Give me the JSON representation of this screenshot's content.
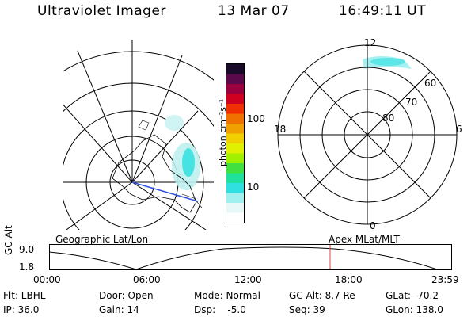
{
  "header": {
    "instrument": "Ultraviolet Imager",
    "date": "13 Mar 07",
    "time": "16:49:11 UT"
  },
  "colorbar": {
    "unit_label": "photon cm⁻²s⁻¹",
    "ticks": [
      "100",
      "10"
    ],
    "colors": [
      "#1a0a2a",
      "#5a0a4a",
      "#9a0040",
      "#d00020",
      "#f03000",
      "#f07000",
      "#f0a000",
      "#f0d000",
      "#e0f000",
      "#a0f000",
      "#40e040",
      "#20e0a0",
      "#30e0e0",
      "#a0f0f0",
      "#e8f8f8",
      "#ffffff"
    ]
  },
  "geo_map": {
    "aurora_color": "#30e0e0"
  },
  "polar_plot": {
    "labels": {
      "top": "12",
      "bottom": "0",
      "left": "18",
      "right": "6",
      "lat_60": "60",
      "lat_70": "70",
      "lat_80": "80"
    },
    "aurora_color": "#a0f0f0"
  },
  "altitude_plot": {
    "ylabel": "GC Alt",
    "yticks": [
      "9.0",
      "1.8"
    ],
    "left_label": "Geographic Lat/Lon",
    "right_label": "Apex MLat/MLT",
    "xticks": [
      "00:00",
      "06:00",
      "12:00",
      "18:00",
      "23:59"
    ],
    "marker_color": "#e04040"
  },
  "info": {
    "filter": "Flt: LBHL",
    "ip": "IP: 36.0",
    "door": "Door: Open",
    "gain": "Gain: 14",
    "mode": "Mode: Normal",
    "dsp": "Dsp:    -5.0",
    "gc_alt": "GC Alt: 8.7 Re",
    "seq": "Seq: 39",
    "glat": "GLat: -70.2",
    "glon": "GLon: 138.0"
  }
}
